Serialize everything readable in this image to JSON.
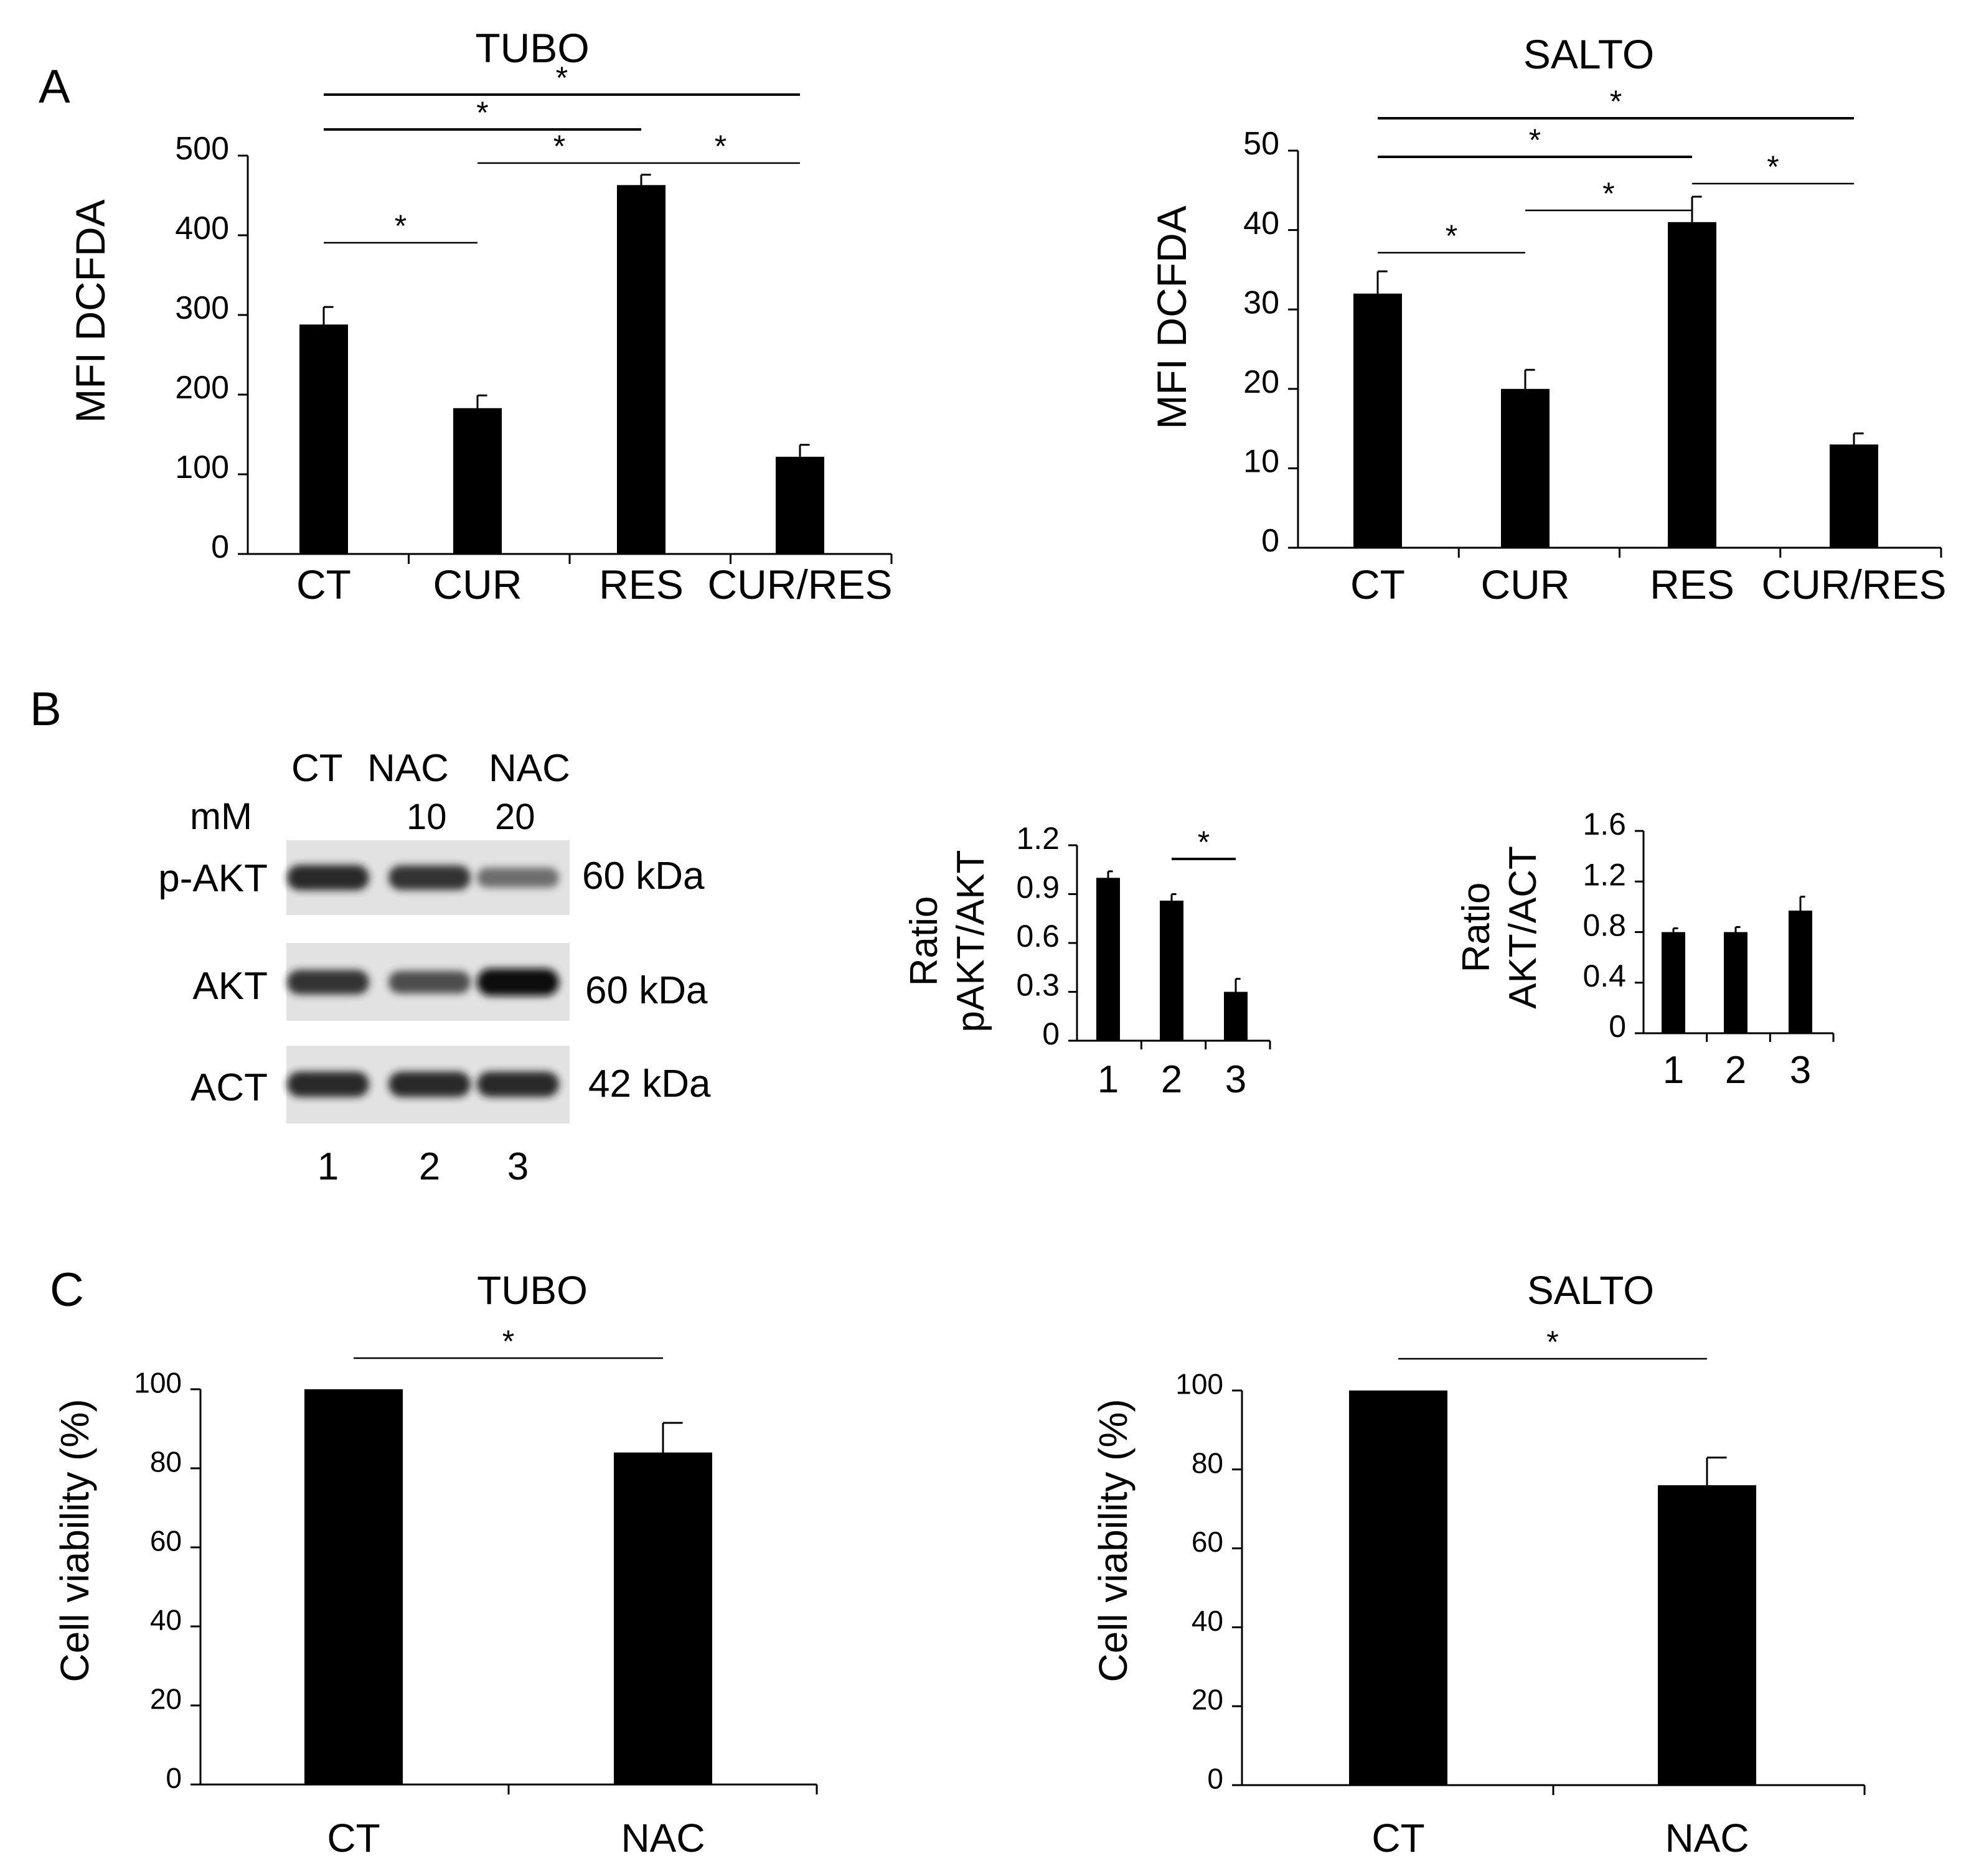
{
  "panel_labels": {
    "a": "A",
    "b": "B",
    "c": "C"
  },
  "blot": {
    "lane_header": [
      "CT",
      "NAC",
      "NAC"
    ],
    "dose_unit": "mM",
    "doses": [
      "10",
      "20"
    ],
    "rows": [
      {
        "label": "p-AKT",
        "size": "60 kDa",
        "intensities": [
          0.85,
          0.8,
          0.45
        ]
      },
      {
        "label": "AKT",
        "size": "60 kDa",
        "intensities": [
          0.8,
          0.65,
          1.0
        ]
      },
      {
        "label": "ACT",
        "size": "42 kDa",
        "intensities": [
          0.85,
          0.85,
          0.85
        ]
      }
    ],
    "lane_numbers": [
      "1",
      "2",
      "3"
    ]
  },
  "chart_data": [
    {
      "id": "a1",
      "type": "bar",
      "title": "TUBO",
      "ylabel": "MFI DCFDA",
      "xlabel": "",
      "categories": [
        "CT",
        "CUR",
        "RES",
        "CUR/RES"
      ],
      "values": [
        288,
        183,
        463,
        122
      ],
      "errors": [
        22,
        16,
        13,
        15
      ],
      "ylim": [
        0,
        500
      ],
      "yticks": [
        0,
        100,
        200,
        300,
        400,
        500
      ],
      "significance": [
        {
          "from": 0,
          "to": 3,
          "label": "*"
        },
        {
          "from": 0,
          "to": 2,
          "label": "*"
        },
        {
          "from": 1,
          "to": 2,
          "label": "*"
        },
        {
          "from": 2,
          "to": 3,
          "label": "*"
        },
        {
          "from": 0,
          "to": 1,
          "label": "*"
        }
      ]
    },
    {
      "id": "a2",
      "type": "bar",
      "title": "SALTO",
      "ylabel": "MFI DCFDA",
      "xlabel": "",
      "categories": [
        "CT",
        "CUR",
        "RES",
        "CUR/RES"
      ],
      "values": [
        32,
        20,
        41,
        13
      ],
      "errors": [
        2.8,
        2.4,
        3.2,
        1.4
      ],
      "ylim": [
        0,
        50
      ],
      "yticks": [
        0,
        10,
        20,
        30,
        40,
        50
      ],
      "significance": [
        {
          "from": 0,
          "to": 3,
          "label": "*"
        },
        {
          "from": 0,
          "to": 2,
          "label": "*"
        },
        {
          "from": 1,
          "to": 2,
          "label": "*"
        },
        {
          "from": 2,
          "to": 3,
          "label": "*"
        },
        {
          "from": 0,
          "to": 1,
          "label": "*"
        }
      ]
    },
    {
      "id": "b1",
      "type": "bar",
      "title": "",
      "ylabel": "Ratio\npAKT/AKT",
      "xlabel": "",
      "categories": [
        "1",
        "2",
        "3"
      ],
      "values": [
        1.0,
        0.86,
        0.3
      ],
      "errors": [
        0.04,
        0.04,
        0.08
      ],
      "ylim": [
        0,
        1.2
      ],
      "yticks": [
        "0",
        "0.3",
        "0.6",
        "0.9",
        "1.2"
      ],
      "significance": [
        {
          "from": 1,
          "to": 2,
          "label": "*"
        }
      ]
    },
    {
      "id": "b2",
      "type": "bar",
      "title": "",
      "ylabel": "Ratio\nAKT/ACT",
      "xlabel": "",
      "categories": [
        "1",
        "2",
        "3"
      ],
      "values": [
        0.8,
        0.8,
        0.97
      ],
      "errors": [
        0.03,
        0.04,
        0.11
      ],
      "ylim": [
        0,
        1.6
      ],
      "yticks": [
        "0",
        "0.4",
        "0.8",
        "1.2",
        "1.6"
      ],
      "significance": []
    },
    {
      "id": "c1",
      "type": "bar",
      "title": "TUBO",
      "ylabel": "Cell viability (%)",
      "xlabel": "",
      "categories": [
        "CT",
        "NAC"
      ],
      "values": [
        100,
        84
      ],
      "errors": [
        0,
        7.5
      ],
      "ylim": [
        0,
        100
      ],
      "yticks": [
        0,
        20,
        40,
        60,
        80,
        100
      ],
      "significance": [
        {
          "from": 0,
          "to": 1,
          "label": "*"
        }
      ]
    },
    {
      "id": "c2",
      "type": "bar",
      "title": "SALTO",
      "ylabel": "Cell viability (%)",
      "xlabel": "",
      "categories": [
        "CT",
        "NAC"
      ],
      "values": [
        100,
        76
      ],
      "errors": [
        0,
        7
      ],
      "ylim": [
        0,
        100
      ],
      "yticks": [
        0,
        20,
        40,
        60,
        80,
        100
      ],
      "significance": [
        {
          "from": 0,
          "to": 1,
          "label": "*"
        }
      ]
    }
  ]
}
